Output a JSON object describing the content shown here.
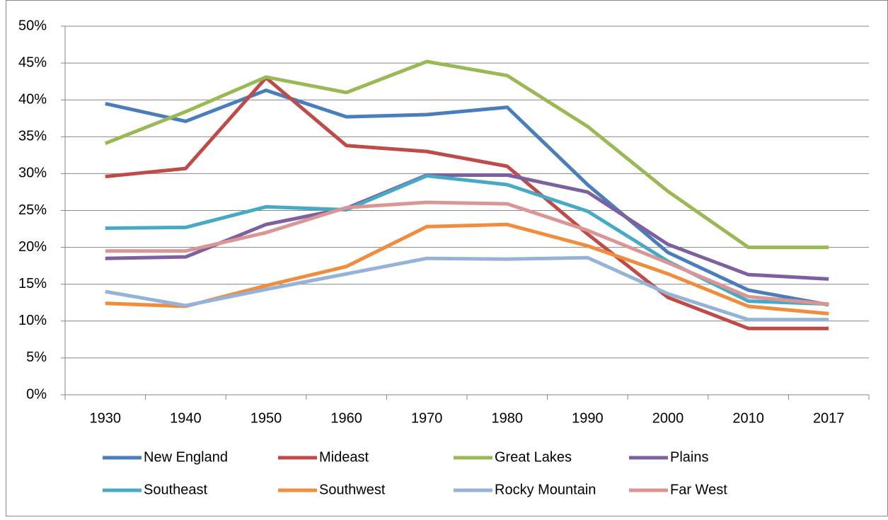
{
  "chart_data": {
    "type": "line",
    "categories": [
      "1930",
      "1940",
      "1950",
      "1960",
      "1970",
      "1980",
      "1990",
      "2000",
      "2010",
      "2017"
    ],
    "series": [
      {
        "name": "New England",
        "color": "#4a7ebb",
        "values": [
          39.5,
          37.1,
          41.3,
          37.7,
          38.0,
          39.0,
          28.5,
          19.3,
          14.2,
          12.2
        ]
      },
      {
        "name": "Mideast",
        "color": "#be4b48",
        "values": [
          29.6,
          30.7,
          43.0,
          33.8,
          33.0,
          31.0,
          21.8,
          13.2,
          9.0,
          9.0
        ]
      },
      {
        "name": "Great Lakes",
        "color": "#98b954",
        "values": [
          34.1,
          38.4,
          43.1,
          41.0,
          45.2,
          43.3,
          36.4,
          27.6,
          20.0,
          20.0
        ]
      },
      {
        "name": "Plains",
        "color": "#7d60a0",
        "values": [
          18.5,
          18.7,
          23.1,
          25.3,
          29.8,
          29.8,
          27.5,
          20.4,
          16.3,
          15.7
        ]
      },
      {
        "name": "Southeast",
        "color": "#46aac5",
        "values": [
          22.6,
          22.7,
          25.5,
          25.1,
          29.7,
          28.5,
          24.9,
          18.1,
          12.7,
          12.3
        ]
      },
      {
        "name": "Southwest",
        "color": "#f08c3c",
        "values": [
          12.4,
          12.0,
          14.8,
          17.4,
          22.8,
          23.1,
          20.2,
          16.4,
          12.0,
          11.0
        ]
      },
      {
        "name": "Rocky Mountain",
        "color": "#95b3d7",
        "values": [
          14.0,
          12.1,
          14.3,
          16.4,
          18.5,
          18.4,
          18.6,
          13.7,
          10.2,
          10.2
        ]
      },
      {
        "name": "Far West",
        "color": "#d99694",
        "values": [
          19.5,
          19.5,
          22.0,
          25.4,
          26.1,
          25.9,
          22.3,
          17.9,
          13.3,
          12.3
        ]
      }
    ],
    "ylim": [
      0,
      50
    ],
    "yticks": [
      {
        "value": 0,
        "label": "0%"
      },
      {
        "value": 5,
        "label": "5%"
      },
      {
        "value": 10,
        "label": "10%"
      },
      {
        "value": 15,
        "label": "15%"
      },
      {
        "value": 20,
        "label": "20%"
      },
      {
        "value": 25,
        "label": "25%"
      },
      {
        "value": 30,
        "label": "30%"
      },
      {
        "value": 35,
        "label": "35%"
      },
      {
        "value": 40,
        "label": "40%"
      },
      {
        "value": 45,
        "label": "45%"
      },
      {
        "value": 50,
        "label": "50%"
      }
    ],
    "grid": true,
    "legend": "bottom"
  }
}
